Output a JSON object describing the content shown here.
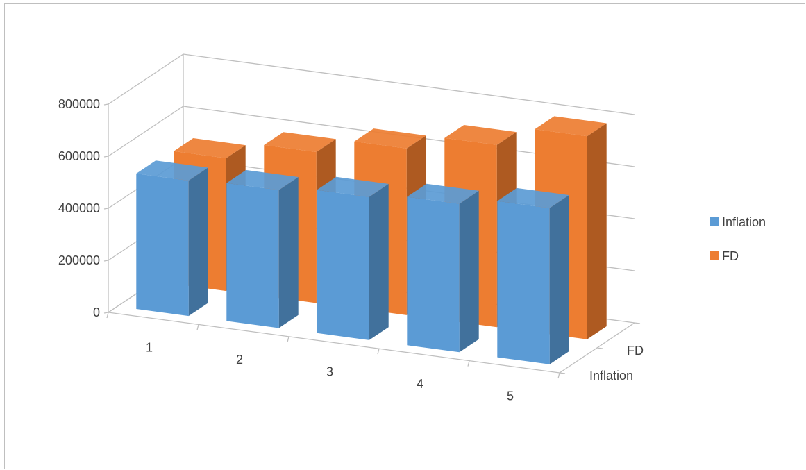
{
  "chart_data": {
    "type": "bar",
    "categories": [
      "1",
      "2",
      "3",
      "4",
      "5"
    ],
    "series": [
      {
        "name": "Inflation",
        "values": [
          520000,
          530000,
          550000,
          570000,
          600000
        ],
        "color": "#5b9bd5",
        "side_color": "#41719c"
      },
      {
        "name": "FD",
        "values": [
          510000,
          580000,
          640000,
          700000,
          780000
        ],
        "color": "#ed7d31",
        "side_color": "#ae5a21"
      }
    ],
    "y_ticks": [
      "0",
      "200000",
      "400000",
      "600000",
      "800000"
    ],
    "ylim": [
      0,
      800000
    ],
    "depth_labels": [
      "FD",
      "Inflation"
    ],
    "legend_position": "right",
    "grid": true
  }
}
